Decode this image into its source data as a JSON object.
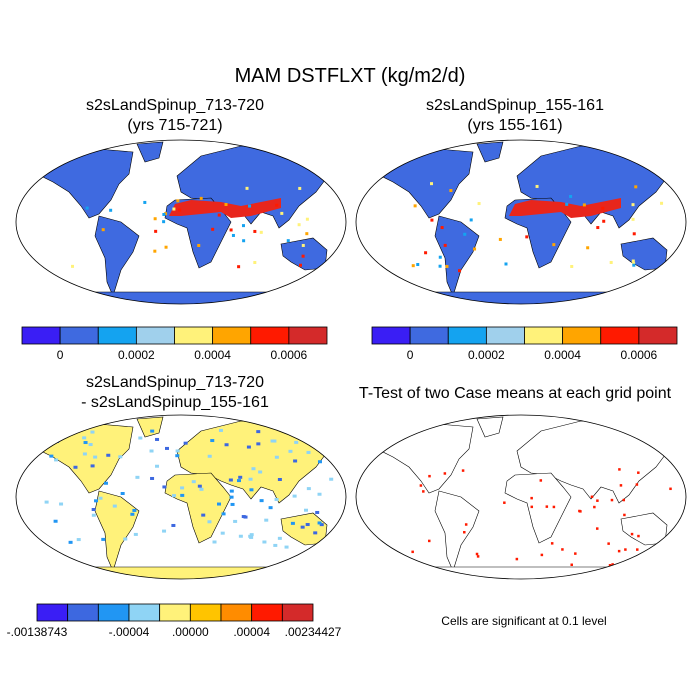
{
  "title": "MAM DSTFLXT (kg/m2/d)",
  "panels": [
    {
      "title": [
        "s2sLandSpinup_713-720",
        "(yrs 715-721)"
      ],
      "colorbar": {
        "colors": [
          "#3a1ef5",
          "#3f6ae0",
          "#14a3f0",
          "#a0d0ec",
          "#fff27a",
          "#ffa500",
          "#ff1a00",
          "#d42a2a"
        ],
        "labels": [
          "0",
          "0.0002",
          "0.0004",
          "0.0006"
        ]
      }
    },
    {
      "title": [
        "s2sLandSpinup_155-161",
        "(yrs 155-161)"
      ],
      "colorbar": {
        "colors": [
          "#3a1ef5",
          "#3f6ae0",
          "#14a3f0",
          "#a0d0ec",
          "#fff27a",
          "#ffa500",
          "#ff1a00",
          "#d42a2a"
        ],
        "labels": [
          "0",
          "0.0002",
          "0.0004",
          "0.0006"
        ]
      }
    },
    {
      "title": [
        "s2sLandSpinup_713-720",
        "- s2sLandSpinup_155-161"
      ],
      "colorbar": {
        "colors": [
          "#3a1ef5",
          "#3d68e0",
          "#2196f3",
          "#8fd4f5",
          "#fff27a",
          "#ffc400",
          "#ff8c00",
          "#ff1a00",
          "#d42a2a"
        ],
        "labels": [
          "-.00138743",
          "-.00004",
          ".00000",
          ".00004",
          ".00234427"
        ]
      }
    },
    {
      "title": [
        "T-Test of two Case means at each grid point"
      ],
      "note": "Cells are significant at 0.1 level"
    }
  ]
}
